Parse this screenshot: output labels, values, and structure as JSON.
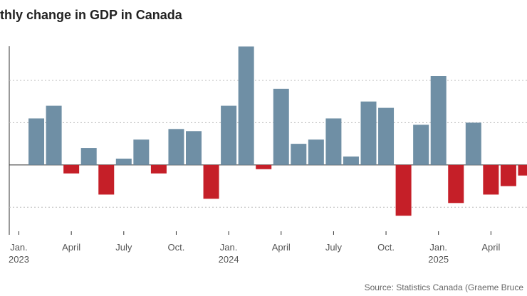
{
  "chart_data": {
    "type": "bar",
    "title": "thly change in GDP in Canada",
    "source": "Source: Statistics Canada (Graeme Bruce",
    "categories": [
      "Jan. 2023",
      null,
      null,
      "April",
      null,
      null,
      "July",
      null,
      null,
      "Oct.",
      null,
      null,
      "Jan. 2024",
      null,
      null,
      "April",
      null,
      null,
      "July",
      null,
      null,
      "Oct.",
      null,
      null,
      "Jan. 2025",
      null,
      null,
      "April",
      null,
      null
    ],
    "values": [
      null,
      0.22,
      0.28,
      -0.04,
      0.08,
      -0.14,
      0.03,
      0.12,
      -0.04,
      0.17,
      0.16,
      -0.16,
      0.28,
      0.56,
      -0.02,
      0.36,
      0.1,
      0.12,
      0.22,
      0.04,
      0.3,
      0.27,
      -0.24,
      0.19,
      0.42,
      -0.18,
      0.2,
      -0.14,
      -0.1,
      -0.05
    ],
    "colors": {
      "positive": "#6f8fa5",
      "negative": "#c51f28"
    },
    "ylim": [
      -0.3,
      0.6
    ],
    "yticks": [
      -0.2,
      0,
      0.2,
      0.4
    ],
    "grid": true
  }
}
